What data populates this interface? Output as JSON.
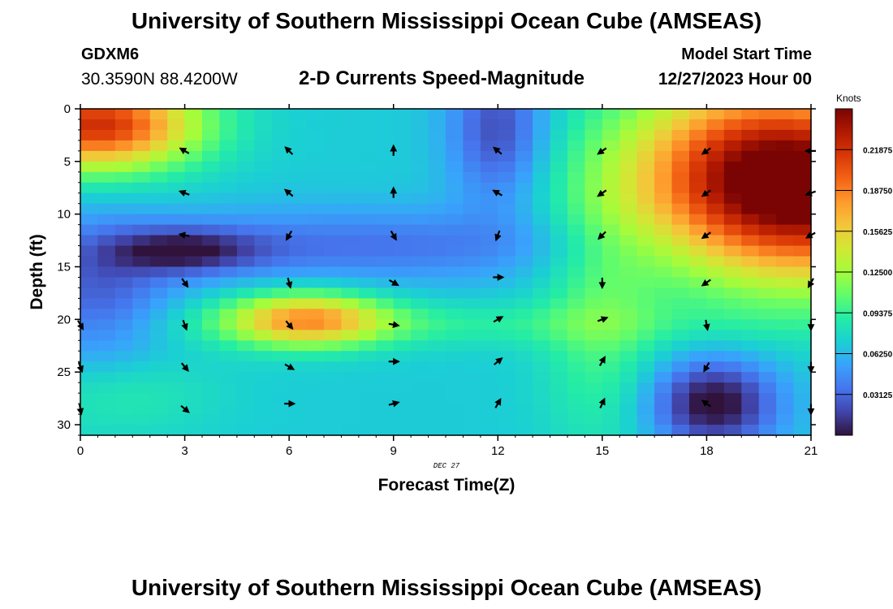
{
  "header": {
    "title": "University of Southern Mississippi Ocean Cube (AMSEAS)",
    "station_id": "GDXM6",
    "coordinates": "30.3590N  88.4200W",
    "subtitle": "2-D Currents Speed-Magnitude",
    "model_start_label": "Model Start Time",
    "model_start_value": "12/27/2023 Hour 00"
  },
  "footer": {
    "title": "University of Southern Mississippi Ocean Cube (AMSEAS)"
  },
  "chart_data": {
    "type": "heatmap",
    "title": "2-D Currents Speed-Magnitude",
    "xlabel": "Forecast Time(Z)",
    "ylabel": "Depth (ft)",
    "date_annotation": "DEC 27",
    "xlim": [
      0,
      21
    ],
    "ylim": [
      31,
      0
    ],
    "xticks": [
      "0",
      "3",
      "6",
      "9",
      "12",
      "15",
      "18",
      "21"
    ],
    "yticks": [
      "0",
      "5",
      "10",
      "15",
      "20",
      "25",
      "30"
    ],
    "colorbar": {
      "units": "Knots",
      "range": [
        0,
        0.25
      ],
      "tick_labels": [
        "0.21875",
        "0.18750",
        "0.15625",
        "0.12500",
        "0.09375",
        "0.06250",
        "0.03125"
      ],
      "tick_values": [
        0.21875,
        0.1875,
        0.15625,
        0.125,
        0.09375,
        0.0625,
        0.03125
      ],
      "stops": [
        "#30123b",
        "#4145ab",
        "#4675ed",
        "#39a2fc",
        "#1bcfd4",
        "#24eca6",
        "#61fc6c",
        "#a4fc3b",
        "#d1e834",
        "#f3c63a",
        "#fe9b2d",
        "#f36315",
        "#d93806",
        "#b11901",
        "#7a0403"
      ]
    },
    "speed_model": {
      "base": 0.07,
      "features": [
        {
          "x": 21,
          "y": 8,
          "sx": 3.2,
          "sy": 6,
          "value": 0.17
        },
        {
          "x": 19,
          "y": 4,
          "sx": 2.5,
          "sy": 6,
          "value": 0.06
        },
        {
          "x": 0.5,
          "y": 1.5,
          "sx": 2,
          "sy": 3,
          "value": 0.15
        },
        {
          "x": 6.5,
          "y": 20,
          "sx": 1.6,
          "sy": 1.8,
          "value": 0.1
        },
        {
          "x": 12,
          "y": 2,
          "sx": 1,
          "sy": 5,
          "value": -0.05
        },
        {
          "x": 3,
          "y": 13.5,
          "sx": 1.5,
          "sy": 1.5,
          "value": -0.05
        },
        {
          "x": 8,
          "y": 13,
          "sx": 5,
          "sy": 2.5,
          "value": -0.035
        },
        {
          "x": 0.5,
          "y": 18,
          "sx": 1.5,
          "sy": 5,
          "value": -0.04
        },
        {
          "x": 18.2,
          "y": 28,
          "sx": 1.3,
          "sy": 3,
          "value": -0.075
        },
        {
          "x": 15,
          "y": 20,
          "sx": 1.2,
          "sy": 9,
          "value": 0.03
        },
        {
          "x": 10,
          "y": 20.5,
          "sx": 6,
          "sy": 1.5,
          "value": 0.02
        },
        {
          "x": 1,
          "y": 27,
          "sx": 2,
          "sy": 3,
          "value": 0.02
        }
      ]
    },
    "vectors": [
      {
        "x": 3,
        "y": 4,
        "angle": 150
      },
      {
        "x": 6,
        "y": 4,
        "angle": 135
      },
      {
        "x": 9,
        "y": 4,
        "angle": 90
      },
      {
        "x": 12,
        "y": 4,
        "angle": 140
      },
      {
        "x": 15,
        "y": 4,
        "angle": 215
      },
      {
        "x": 18,
        "y": 4,
        "angle": 215
      },
      {
        "x": 21,
        "y": 4,
        "angle": 180
      },
      {
        "x": 3,
        "y": 8,
        "angle": 160
      },
      {
        "x": 6,
        "y": 8,
        "angle": 140
      },
      {
        "x": 9,
        "y": 8,
        "angle": 90
      },
      {
        "x": 12,
        "y": 8,
        "angle": 150
      },
      {
        "x": 15,
        "y": 8,
        "angle": 215
      },
      {
        "x": 18,
        "y": 8,
        "angle": 215
      },
      {
        "x": 21,
        "y": 8,
        "angle": 200
      },
      {
        "x": 3,
        "y": 12,
        "angle": 170
      },
      {
        "x": 6,
        "y": 12,
        "angle": 240
      },
      {
        "x": 9,
        "y": 12,
        "angle": 300
      },
      {
        "x": 12,
        "y": 12,
        "angle": 250
      },
      {
        "x": 15,
        "y": 12,
        "angle": 225
      },
      {
        "x": 18,
        "y": 12,
        "angle": 215
      },
      {
        "x": 21,
        "y": 12,
        "angle": 210
      },
      {
        "x": 3,
        "y": 16.5,
        "angle": 305
      },
      {
        "x": 6,
        "y": 16.5,
        "angle": 285
      },
      {
        "x": 9,
        "y": 16.5,
        "angle": 330
      },
      {
        "x": 12,
        "y": 16,
        "angle": 0
      },
      {
        "x": 15,
        "y": 16.5,
        "angle": 270
      },
      {
        "x": 18,
        "y": 16.5,
        "angle": 215
      },
      {
        "x": 21,
        "y": 16.5,
        "angle": 240
      },
      {
        "x": 0,
        "y": 20.5,
        "angle": 300
      },
      {
        "x": 3,
        "y": 20.5,
        "angle": 290
      },
      {
        "x": 6,
        "y": 20.5,
        "angle": 310
      },
      {
        "x": 9,
        "y": 20.5,
        "angle": 350
      },
      {
        "x": 12,
        "y": 20,
        "angle": 30
      },
      {
        "x": 15,
        "y": 20,
        "angle": 20
      },
      {
        "x": 18,
        "y": 20.5,
        "angle": 280
      },
      {
        "x": 21,
        "y": 20.5,
        "angle": 270
      },
      {
        "x": 0,
        "y": 24.5,
        "angle": 290
      },
      {
        "x": 3,
        "y": 24.5,
        "angle": 310
      },
      {
        "x": 6,
        "y": 24.5,
        "angle": 330
      },
      {
        "x": 9,
        "y": 24,
        "angle": 0
      },
      {
        "x": 12,
        "y": 24,
        "angle": 40
      },
      {
        "x": 15,
        "y": 24,
        "angle": 60
      },
      {
        "x": 18,
        "y": 24.5,
        "angle": 240
      },
      {
        "x": 21,
        "y": 24.5,
        "angle": 270
      },
      {
        "x": 0,
        "y": 28.5,
        "angle": 280
      },
      {
        "x": 3,
        "y": 28.5,
        "angle": 320
      },
      {
        "x": 6,
        "y": 28,
        "angle": 0
      },
      {
        "x": 9,
        "y": 28,
        "angle": 15
      },
      {
        "x": 12,
        "y": 28,
        "angle": 60
      },
      {
        "x": 15,
        "y": 28,
        "angle": 65
      },
      {
        "x": 18,
        "y": 28,
        "angle": 145
      },
      {
        "x": 21,
        "y": 28.5,
        "angle": 270
      }
    ]
  }
}
